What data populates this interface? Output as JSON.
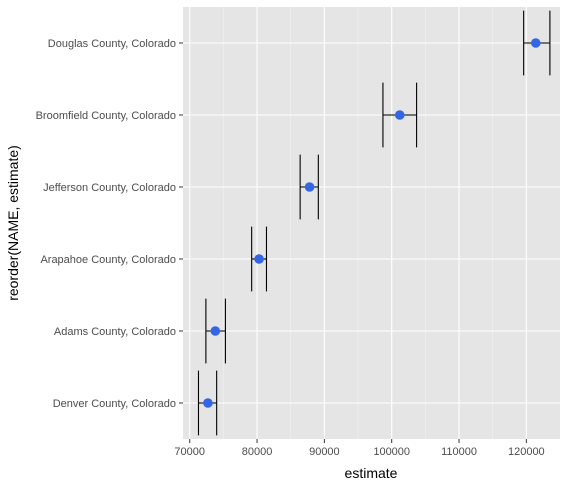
{
  "chart_data": {
    "type": "scatter",
    "title": "",
    "xlabel": "estimate",
    "ylabel": "reorder(NAME, estimate)",
    "xlim": [
      69000,
      125000
    ],
    "xticks": [
      70000,
      80000,
      90000,
      100000,
      110000,
      120000
    ],
    "xtick_labels": [
      "70000",
      "80000",
      "90000",
      "100000",
      "110000",
      "120000"
    ],
    "grid": true,
    "error_bars": true,
    "point_color": "#3366e6",
    "panel_color": "#e5e5e5",
    "points": [
      {
        "name": "Denver County, Colorado",
        "estimate": 72700,
        "lower": 71300,
        "upper": 74000
      },
      {
        "name": "Adams County, Colorado",
        "estimate": 73800,
        "lower": 72400,
        "upper": 75300
      },
      {
        "name": "Arapahoe County, Colorado",
        "estimate": 80300,
        "lower": 79200,
        "upper": 81400
      },
      {
        "name": "Jefferson County, Colorado",
        "estimate": 87800,
        "lower": 86400,
        "upper": 89100
      },
      {
        "name": "Broomfield County, Colorado",
        "estimate": 101200,
        "lower": 98700,
        "upper": 103700
      },
      {
        "name": "Douglas County, Colorado",
        "estimate": 121400,
        "lower": 119600,
        "upper": 123500
      }
    ]
  }
}
